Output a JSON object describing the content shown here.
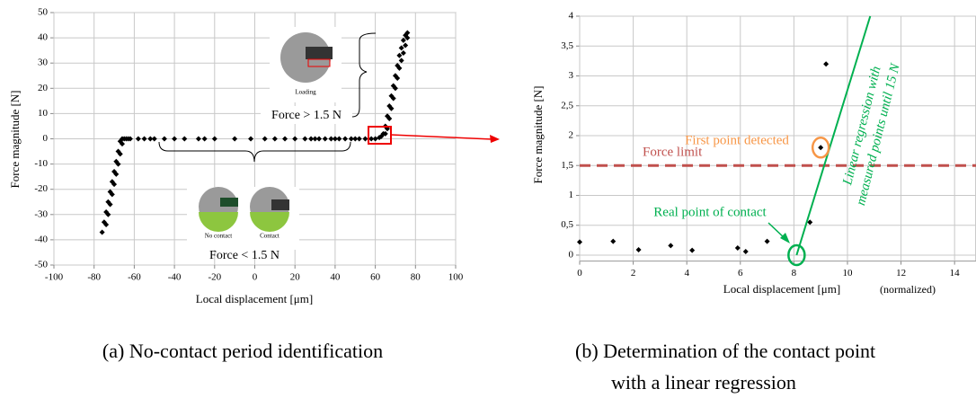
{
  "chart_data": [
    {
      "type": "scatter",
      "xlabel": "Local displacement [μm]",
      "ylabel": "Force magnitude [N]",
      "caption": "(a) No-contact period identification",
      "xlim": [
        -100,
        100
      ],
      "xticks": [
        -100,
        -80,
        -60,
        -40,
        -20,
        0,
        20,
        40,
        60,
        80,
        100
      ],
      "ylim": [
        -50,
        50
      ],
      "yticks": [
        -50,
        -40,
        -30,
        -20,
        -10,
        0,
        10,
        20,
        30,
        40,
        50
      ],
      "grid": true,
      "color": "#000000",
      "annotations": {
        "force_above": "Force > 1.5 N",
        "force_below": "Force < 1.5 N",
        "loading": "Loading",
        "no_contact": "No contact",
        "contact": "Contact"
      },
      "x": [
        -76,
        -75,
        -74,
        -73,
        -72,
        -71,
        -70,
        -69,
        -68,
        -67,
        -66,
        -74,
        -73,
        -72,
        -71,
        -70,
        -69,
        -68,
        -67,
        -66,
        -65,
        -64,
        -63,
        -62,
        -58,
        -55,
        -52,
        -50,
        -45,
        -40,
        -35,
        -28,
        -25,
        -20,
        -10,
        -2,
        5,
        10,
        15,
        20,
        25,
        28,
        30,
        32,
        35,
        38,
        40,
        42,
        45,
        48,
        50,
        52,
        55,
        58,
        60,
        62,
        63,
        64,
        65,
        66,
        67,
        68,
        69,
        70,
        71,
        72,
        73,
        74,
        75,
        76,
        76,
        75,
        74,
        73,
        72,
        71,
        70,
        69,
        68,
        67,
        66,
        65
      ],
      "values": [
        -37,
        -33,
        -29,
        -25,
        -21,
        -17,
        -13,
        -9,
        -5,
        -1,
        0,
        -34,
        -30,
        -26,
        -22,
        -18,
        -14,
        -10,
        -6,
        -2,
        0,
        0,
        0,
        0,
        0,
        0,
        0,
        0,
        0,
        0,
        0,
        0,
        0,
        0,
        0,
        0,
        0,
        0,
        0,
        0,
        0,
        0,
        0,
        0,
        0,
        0,
        0,
        0,
        0,
        0,
        0,
        0,
        0,
        0,
        0,
        0.5,
        1,
        2,
        5,
        9,
        13,
        17,
        21,
        25,
        29,
        33,
        36,
        39,
        41,
        42,
        40,
        37,
        34,
        31,
        28,
        24,
        20,
        16,
        12,
        8,
        4,
        2
      ]
    },
    {
      "type": "scatter",
      "xlabel": "Local displacement [μm]",
      "xlabel_note": "(normalized)",
      "ylabel": "Force magnitude [N]",
      "caption": [
        "(b) Determination of the contact point",
        "with a linear regression"
      ],
      "xlim": [
        0,
        14.8
      ],
      "xticks": [
        0,
        2,
        4,
        6,
        8,
        10,
        12,
        14
      ],
      "ylim": [
        -0.1,
        4
      ],
      "yticks": [
        0,
        {
          "value": 0.5,
          "label": "0,5"
        },
        1,
        {
          "value": 1.5,
          "label": "1,5"
        },
        2,
        {
          "value": 2.5,
          "label": "2,5"
        },
        3,
        {
          "value": 3.5,
          "label": "3,5"
        },
        4
      ],
      "grid": true,
      "color": "#000000",
      "x": [
        0,
        1.25,
        2.2,
        3.4,
        4.2,
        5.9,
        6.2,
        7.0,
        8.6,
        9.0,
        9.2
      ],
      "values": [
        0.22,
        0.23,
        0.09,
        0.16,
        0.08,
        0.12,
        0.06,
        0.23,
        0.55,
        1.8,
        3.2
      ],
      "force_limit": 1.5,
      "force_limit_color": "#c0504d",
      "regression": {
        "x": [
          8.1,
          10.85
        ],
        "values": [
          0,
          4
        ],
        "color": "#00b050"
      },
      "highlights": [
        {
          "x": 9.0,
          "y": 1.8,
          "color": "#f79646"
        },
        {
          "x": 8.1,
          "y": 0,
          "color": "#00b050"
        }
      ],
      "annotations": {
        "first_point": "First point detected",
        "force_limit": "Force limit",
        "real_contact": "Real point of contact",
        "regression": [
          "Linear regression with",
          "measured  points until 15 N"
        ]
      }
    }
  ]
}
